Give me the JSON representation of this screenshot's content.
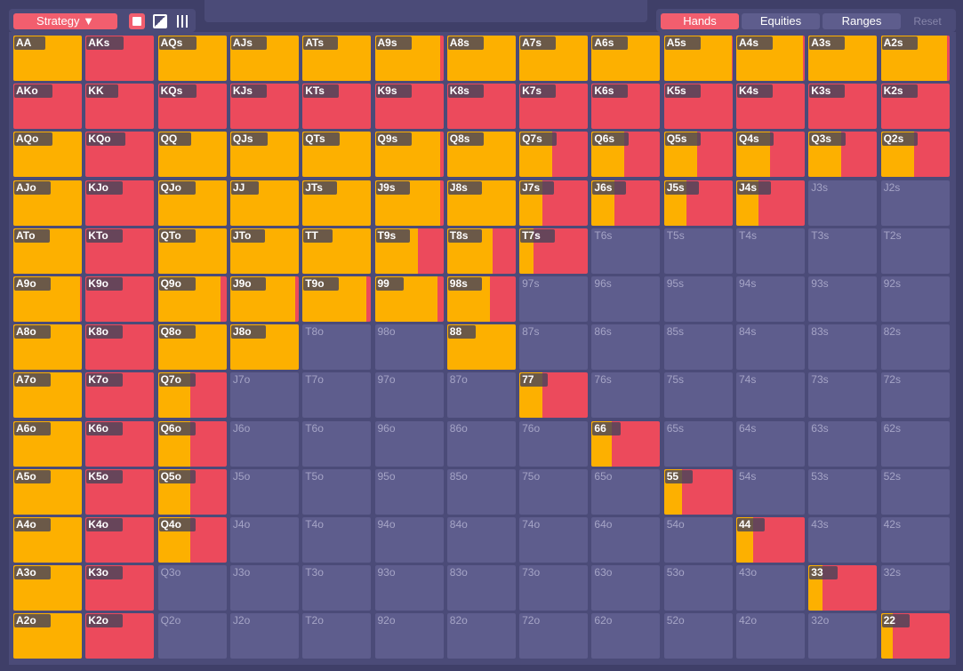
{
  "toolbar": {
    "strategy": "Strategy",
    "tabs": [
      "Hands",
      "Equities",
      "Ranges"
    ],
    "reset": "Reset"
  },
  "grid": {
    "rows": [
      [
        {
          "label": "AA",
          "freq": 100
        },
        {
          "label": "AKs",
          "freq": 0
        },
        {
          "label": "AQs",
          "freq": 100
        },
        {
          "label": "AJs",
          "freq": 100
        },
        {
          "label": "ATs",
          "freq": 100
        },
        {
          "label": "A9s",
          "freq": 96
        },
        {
          "label": "A8s",
          "freq": 100
        },
        {
          "label": "A7s",
          "freq": 100
        },
        {
          "label": "A6s",
          "freq": 99
        },
        {
          "label": "A5s",
          "freq": 99
        },
        {
          "label": "A4s",
          "freq": 98
        },
        {
          "label": "A3s",
          "freq": 100
        },
        {
          "label": "A2s",
          "freq": 97
        }
      ],
      [
        {
          "label": "AKo",
          "freq": 0
        },
        {
          "label": "KK",
          "freq": 0
        },
        {
          "label": "KQs",
          "freq": 0
        },
        {
          "label": "KJs",
          "freq": 0
        },
        {
          "label": "KTs",
          "freq": 0
        },
        {
          "label": "K9s",
          "freq": 0
        },
        {
          "label": "K8s",
          "freq": 0
        },
        {
          "label": "K7s",
          "freq": 0
        },
        {
          "label": "K6s",
          "freq": 0
        },
        {
          "label": "K5s",
          "freq": 0
        },
        {
          "label": "K4s",
          "freq": 0
        },
        {
          "label": "K3s",
          "freq": 0
        },
        {
          "label": "K2s",
          "freq": 0
        }
      ],
      [
        {
          "label": "AQo",
          "freq": 100
        },
        {
          "label": "KQo",
          "freq": 0
        },
        {
          "label": "QQ",
          "freq": 100
        },
        {
          "label": "QJs",
          "freq": 100
        },
        {
          "label": "QTs",
          "freq": 100
        },
        {
          "label": "Q9s",
          "freq": 96
        },
        {
          "label": "Q8s",
          "freq": 100
        },
        {
          "label": "Q7s",
          "freq": 48
        },
        {
          "label": "Q6s",
          "freq": 47
        },
        {
          "label": "Q5s",
          "freq": 48
        },
        {
          "label": "Q4s",
          "freq": 49
        },
        {
          "label": "Q3s",
          "freq": 48
        },
        {
          "label": "Q2s",
          "freq": 48
        }
      ],
      [
        {
          "label": "AJo",
          "freq": 100
        },
        {
          "label": "KJo",
          "freq": 0
        },
        {
          "label": "QJo",
          "freq": 100
        },
        {
          "label": "JJ",
          "freq": 100
        },
        {
          "label": "JTs",
          "freq": 100
        },
        {
          "label": "J9s",
          "freq": 96
        },
        {
          "label": "J8s",
          "freq": 100
        },
        {
          "label": "J7s",
          "freq": 33
        },
        {
          "label": "J6s",
          "freq": 33
        },
        {
          "label": "J5s",
          "freq": 33
        },
        {
          "label": "J4s",
          "freq": 33
        },
        {
          "label": "J3s"
        },
        {
          "label": "J2s"
        }
      ],
      [
        {
          "label": "ATo",
          "freq": 100
        },
        {
          "label": "KTo",
          "freq": 0
        },
        {
          "label": "QTo",
          "freq": 100
        },
        {
          "label": "JTo",
          "freq": 100
        },
        {
          "label": "TT",
          "freq": 100
        },
        {
          "label": "T9s",
          "freq": 63
        },
        {
          "label": "T8s",
          "freq": 67
        },
        {
          "label": "T7s",
          "freq": 21
        },
        {
          "label": "T6s"
        },
        {
          "label": "T5s"
        },
        {
          "label": "T4s"
        },
        {
          "label": "T3s"
        },
        {
          "label": "T2s"
        }
      ],
      [
        {
          "label": "A9o",
          "freq": 97
        },
        {
          "label": "K9o",
          "freq": 0
        },
        {
          "label": "Q9o",
          "freq": 92
        },
        {
          "label": "J9o",
          "freq": 95
        },
        {
          "label": "T9o",
          "freq": 93
        },
        {
          "label": "99",
          "freq": 92
        },
        {
          "label": "98s",
          "freq": 63
        },
        {
          "label": "97s"
        },
        {
          "label": "96s"
        },
        {
          "label": "95s"
        },
        {
          "label": "94s"
        },
        {
          "label": "93s"
        },
        {
          "label": "92s"
        }
      ],
      [
        {
          "label": "A8o",
          "freq": 100
        },
        {
          "label": "K8o",
          "freq": 0
        },
        {
          "label": "Q8o",
          "freq": 100
        },
        {
          "label": "J8o",
          "freq": 100
        },
        {
          "label": "T8o"
        },
        {
          "label": "98o"
        },
        {
          "label": "88",
          "freq": 100
        },
        {
          "label": "87s"
        },
        {
          "label": "86s"
        },
        {
          "label": "85s"
        },
        {
          "label": "84s"
        },
        {
          "label": "83s"
        },
        {
          "label": "82s"
        }
      ],
      [
        {
          "label": "A7o",
          "freq": 100
        },
        {
          "label": "K7o",
          "freq": 0
        },
        {
          "label": "Q7o",
          "freq": 47
        },
        {
          "label": "J7o"
        },
        {
          "label": "T7o"
        },
        {
          "label": "97o"
        },
        {
          "label": "87o"
        },
        {
          "label": "77",
          "freq": 34
        },
        {
          "label": "76s"
        },
        {
          "label": "75s"
        },
        {
          "label": "74s"
        },
        {
          "label": "73s"
        },
        {
          "label": "72s"
        }
      ],
      [
        {
          "label": "A6o",
          "freq": 100
        },
        {
          "label": "K6o",
          "freq": 0
        },
        {
          "label": "Q6o",
          "freq": 47
        },
        {
          "label": "J6o"
        },
        {
          "label": "T6o"
        },
        {
          "label": "96o"
        },
        {
          "label": "86o"
        },
        {
          "label": "76o"
        },
        {
          "label": "66",
          "freq": 30
        },
        {
          "label": "65s"
        },
        {
          "label": "64s"
        },
        {
          "label": "63s"
        },
        {
          "label": "62s"
        }
      ],
      [
        {
          "label": "A5o",
          "freq": 100
        },
        {
          "label": "K5o",
          "freq": 0
        },
        {
          "label": "Q5o",
          "freq": 47
        },
        {
          "label": "J5o"
        },
        {
          "label": "T5o"
        },
        {
          "label": "95o"
        },
        {
          "label": "85o"
        },
        {
          "label": "75o"
        },
        {
          "label": "65o"
        },
        {
          "label": "55",
          "freq": 26
        },
        {
          "label": "54s"
        },
        {
          "label": "53s"
        },
        {
          "label": "52s"
        }
      ],
      [
        {
          "label": "A4o",
          "freq": 100
        },
        {
          "label": "K4o",
          "freq": 0
        },
        {
          "label": "Q4o",
          "freq": 47
        },
        {
          "label": "J4o"
        },
        {
          "label": "T4o"
        },
        {
          "label": "94o"
        },
        {
          "label": "84o"
        },
        {
          "label": "74o"
        },
        {
          "label": "64o"
        },
        {
          "label": "54o"
        },
        {
          "label": "44",
          "freq": 25
        },
        {
          "label": "43s"
        },
        {
          "label": "42s"
        }
      ],
      [
        {
          "label": "A3o",
          "freq": 100
        },
        {
          "label": "K3o",
          "freq": 0
        },
        {
          "label": "Q3o"
        },
        {
          "label": "J3o"
        },
        {
          "label": "T3o"
        },
        {
          "label": "93o"
        },
        {
          "label": "83o"
        },
        {
          "label": "73o"
        },
        {
          "label": "63o"
        },
        {
          "label": "53o"
        },
        {
          "label": "43o"
        },
        {
          "label": "33",
          "freq": 20
        },
        {
          "label": "32s"
        }
      ],
      [
        {
          "label": "A2o",
          "freq": 100
        },
        {
          "label": "K2o",
          "freq": 0
        },
        {
          "label": "Q2o"
        },
        {
          "label": "J2o"
        },
        {
          "label": "T2o"
        },
        {
          "label": "92o"
        },
        {
          "label": "82o"
        },
        {
          "label": "72o"
        },
        {
          "label": "62o"
        },
        {
          "label": "52o"
        },
        {
          "label": "42o"
        },
        {
          "label": "32o"
        },
        {
          "label": "22",
          "freq": 18
        }
      ]
    ]
  }
}
